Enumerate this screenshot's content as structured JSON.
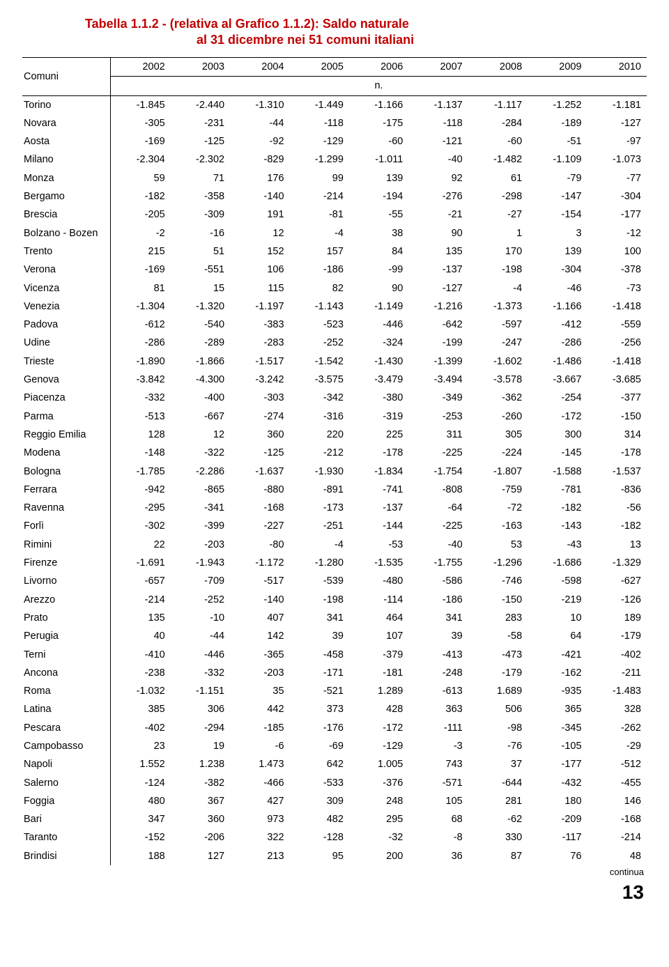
{
  "title_line1": "Tabella 1.1.2 - (relativa al Grafico 1.1.2): Saldo naturale",
  "title_line2": "al 31 dicembre  nei 51 comuni italiani",
  "header": {
    "row_label": "Comuni",
    "unit_label": "n.",
    "years": [
      "2002",
      "2003",
      "2004",
      "2005",
      "2006",
      "2007",
      "2008",
      "2009",
      "2010"
    ]
  },
  "colors": {
    "title": "#c00000",
    "border": "#000000",
    "text": "#000000",
    "background": "#ffffff"
  },
  "rows": [
    {
      "name": "Torino",
      "v": [
        "-1.845",
        "-2.440",
        "-1.310",
        "-1.449",
        "-1.166",
        "-1.137",
        "-1.117",
        "-1.252",
        "-1.181"
      ]
    },
    {
      "name": "Novara",
      "v": [
        "-305",
        "-231",
        "-44",
        "-118",
        "-175",
        "-118",
        "-284",
        "-189",
        "-127"
      ]
    },
    {
      "name": "Aosta",
      "v": [
        "-169",
        "-125",
        "-92",
        "-129",
        "-60",
        "-121",
        "-60",
        "-51",
        "-97"
      ]
    },
    {
      "name": "Milano",
      "v": [
        "-2.304",
        "-2.302",
        "-829",
        "-1.299",
        "-1.011",
        "-40",
        "-1.482",
        "-1.109",
        "-1.073"
      ]
    },
    {
      "name": "Monza",
      "v": [
        "59",
        "71",
        "176",
        "99",
        "139",
        "92",
        "61",
        "-79",
        "-77"
      ]
    },
    {
      "name": "Bergamo",
      "v": [
        "-182",
        "-358",
        "-140",
        "-214",
        "-194",
        "-276",
        "-298",
        "-147",
        "-304"
      ]
    },
    {
      "name": "Brescia",
      "v": [
        "-205",
        "-309",
        "191",
        "-81",
        "-55",
        "-21",
        "-27",
        "-154",
        "-177"
      ]
    },
    {
      "name": "Bolzano - Bozen",
      "v": [
        "-2",
        "-16",
        "12",
        "-4",
        "38",
        "90",
        "1",
        "3",
        "-12"
      ]
    },
    {
      "name": "Trento",
      "v": [
        "215",
        "51",
        "152",
        "157",
        "84",
        "135",
        "170",
        "139",
        "100"
      ]
    },
    {
      "name": "Verona",
      "v": [
        "-169",
        "-551",
        "106",
        "-186",
        "-99",
        "-137",
        "-198",
        "-304",
        "-378"
      ]
    },
    {
      "name": "Vicenza",
      "v": [
        "81",
        "15",
        "115",
        "82",
        "90",
        "-127",
        "-4",
        "-46",
        "-73"
      ]
    },
    {
      "name": "Venezia",
      "v": [
        "-1.304",
        "-1.320",
        "-1.197",
        "-1.143",
        "-1.149",
        "-1.216",
        "-1.373",
        "-1.166",
        "-1.418"
      ]
    },
    {
      "name": "Padova",
      "v": [
        "-612",
        "-540",
        "-383",
        "-523",
        "-446",
        "-642",
        "-597",
        "-412",
        "-559"
      ]
    },
    {
      "name": "Udine",
      "v": [
        "-286",
        "-289",
        "-283",
        "-252",
        "-324",
        "-199",
        "-247",
        "-286",
        "-256"
      ]
    },
    {
      "name": "Trieste",
      "v": [
        "-1.890",
        "-1.866",
        "-1.517",
        "-1.542",
        "-1.430",
        "-1.399",
        "-1.602",
        "-1.486",
        "-1.418"
      ]
    },
    {
      "name": "Genova",
      "v": [
        "-3.842",
        "-4.300",
        "-3.242",
        "-3.575",
        "-3.479",
        "-3.494",
        "-3.578",
        "-3.667",
        "-3.685"
      ]
    },
    {
      "name": "Piacenza",
      "v": [
        "-332",
        "-400",
        "-303",
        "-342",
        "-380",
        "-349",
        "-362",
        "-254",
        "-377"
      ]
    },
    {
      "name": "Parma",
      "v": [
        "-513",
        "-667",
        "-274",
        "-316",
        "-319",
        "-253",
        "-260",
        "-172",
        "-150"
      ]
    },
    {
      "name": "Reggio Emilia",
      "v": [
        "128",
        "12",
        "360",
        "220",
        "225",
        "311",
        "305",
        "300",
        "314"
      ]
    },
    {
      "name": "Modena",
      "v": [
        "-148",
        "-322",
        "-125",
        "-212",
        "-178",
        "-225",
        "-224",
        "-145",
        "-178"
      ]
    },
    {
      "name": "Bologna",
      "v": [
        "-1.785",
        "-2.286",
        "-1.637",
        "-1.930",
        "-1.834",
        "-1.754",
        "-1.807",
        "-1.588",
        "-1.537"
      ]
    },
    {
      "name": "Ferrara",
      "v": [
        "-942",
        "-865",
        "-880",
        "-891",
        "-741",
        "-808",
        "-759",
        "-781",
        "-836"
      ]
    },
    {
      "name": "Ravenna",
      "v": [
        "-295",
        "-341",
        "-168",
        "-173",
        "-137",
        "-64",
        "-72",
        "-182",
        "-56"
      ]
    },
    {
      "name": "Forlì",
      "v": [
        "-302",
        "-399",
        "-227",
        "-251",
        "-144",
        "-225",
        "-163",
        "-143",
        "-182"
      ]
    },
    {
      "name": "Rimini",
      "v": [
        "22",
        "-203",
        "-80",
        "-4",
        "-53",
        "-40",
        "53",
        "-43",
        "13"
      ]
    },
    {
      "name": "Firenze",
      "v": [
        "-1.691",
        "-1.943",
        "-1.172",
        "-1.280",
        "-1.535",
        "-1.755",
        "-1.296",
        "-1.686",
        "-1.329"
      ]
    },
    {
      "name": "Livorno",
      "v": [
        "-657",
        "-709",
        "-517",
        "-539",
        "-480",
        "-586",
        "-746",
        "-598",
        "-627"
      ]
    },
    {
      "name": "Arezzo",
      "v": [
        "-214",
        "-252",
        "-140",
        "-198",
        "-114",
        "-186",
        "-150",
        "-219",
        "-126"
      ]
    },
    {
      "name": "Prato",
      "v": [
        "135",
        "-10",
        "407",
        "341",
        "464",
        "341",
        "283",
        "10",
        "189"
      ]
    },
    {
      "name": "Perugia",
      "v": [
        "40",
        "-44",
        "142",
        "39",
        "107",
        "39",
        "-58",
        "64",
        "-179"
      ]
    },
    {
      "name": "Terni",
      "v": [
        "-410",
        "-446",
        "-365",
        "-458",
        "-379",
        "-413",
        "-473",
        "-421",
        "-402"
      ]
    },
    {
      "name": "Ancona",
      "v": [
        "-238",
        "-332",
        "-203",
        "-171",
        "-181",
        "-248",
        "-179",
        "-162",
        "-211"
      ]
    },
    {
      "name": "Roma",
      "v": [
        "-1.032",
        "-1.151",
        "35",
        "-521",
        "1.289",
        "-613",
        "1.689",
        "-935",
        "-1.483"
      ]
    },
    {
      "name": "Latina",
      "v": [
        "385",
        "306",
        "442",
        "373",
        "428",
        "363",
        "506",
        "365",
        "328"
      ]
    },
    {
      "name": "Pescara",
      "v": [
        "-402",
        "-294",
        "-185",
        "-176",
        "-172",
        "-111",
        "-98",
        "-345",
        "-262"
      ]
    },
    {
      "name": "Campobasso",
      "v": [
        "23",
        "19",
        "-6",
        "-69",
        "-129",
        "-3",
        "-76",
        "-105",
        "-29"
      ]
    },
    {
      "name": "Napoli",
      "v": [
        "1.552",
        "1.238",
        "1.473",
        "642",
        "1.005",
        "743",
        "37",
        "-177",
        "-512"
      ]
    },
    {
      "name": "Salerno",
      "v": [
        "-124",
        "-382",
        "-466",
        "-533",
        "-376",
        "-571",
        "-644",
        "-432",
        "-455"
      ]
    },
    {
      "name": "Foggia",
      "v": [
        "480",
        "367",
        "427",
        "309",
        "248",
        "105",
        "281",
        "180",
        "146"
      ]
    },
    {
      "name": "Bari",
      "v": [
        "347",
        "360",
        "973",
        "482",
        "295",
        "68",
        "-62",
        "-209",
        "-168"
      ]
    },
    {
      "name": "Taranto",
      "v": [
        "-152",
        "-206",
        "322",
        "-128",
        "-32",
        "-8",
        "330",
        "-117",
        "-214"
      ]
    },
    {
      "name": "Brindisi",
      "v": [
        "188",
        "127",
        "213",
        "95",
        "200",
        "36",
        "87",
        "76",
        "48"
      ]
    }
  ],
  "footer": {
    "continua": "continua",
    "page": "13"
  }
}
